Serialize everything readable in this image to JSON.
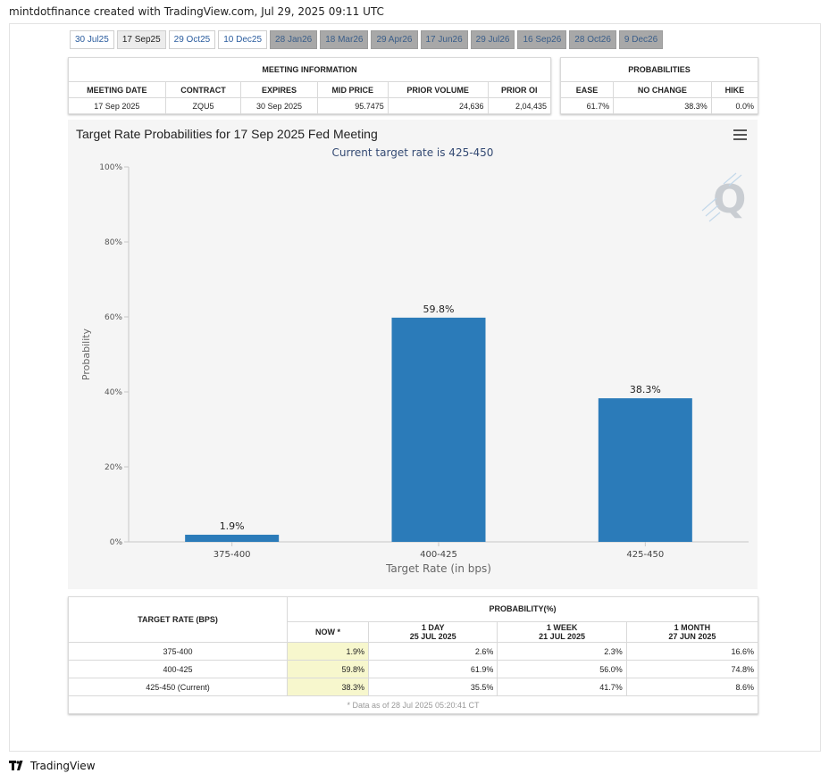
{
  "header": {
    "caption": "mintdotfinance created with TradingView.com, Jul 29, 2025 09:11 UTC"
  },
  "tabs": [
    {
      "label": "30 Jul25",
      "state": "normal"
    },
    {
      "label": "17 Sep25",
      "state": "selected"
    },
    {
      "label": "29 Oct25",
      "state": "normal"
    },
    {
      "label": "10 Dec25",
      "state": "normal"
    },
    {
      "label": "28 Jan26",
      "state": "future"
    },
    {
      "label": "18 Mar26",
      "state": "future"
    },
    {
      "label": "29 Apr26",
      "state": "future"
    },
    {
      "label": "17 Jun26",
      "state": "future"
    },
    {
      "label": "29 Jul26",
      "state": "future"
    },
    {
      "label": "16 Sep26",
      "state": "future"
    },
    {
      "label": "28 Oct26",
      "state": "future"
    },
    {
      "label": "9 Dec26",
      "state": "future"
    }
  ],
  "meeting_info": {
    "title": "MEETING INFORMATION",
    "columns": [
      "MEETING DATE",
      "CONTRACT",
      "EXPIRES",
      "MID PRICE",
      "PRIOR VOLUME",
      "PRIOR OI"
    ],
    "row": [
      "17 Sep 2025",
      "ZQU5",
      "30 Sep 2025",
      "95.7475",
      "24,636",
      "2,04,435"
    ]
  },
  "probabilities": {
    "title": "PROBABILITIES",
    "columns": [
      "EASE",
      "NO CHANGE",
      "HIKE"
    ],
    "row": [
      "61.7%",
      "38.3%",
      "0.0%"
    ]
  },
  "chart_data": {
    "type": "bar",
    "title": "Target Rate Probabilities for 17 Sep 2025 Fed Meeting",
    "subtitle": "Current target rate is 425-450",
    "xlabel": "Target Rate (in bps)",
    "ylabel": "Probability",
    "categories": [
      "375-400",
      "400-425",
      "425-450"
    ],
    "values": [
      1.9,
      59.8,
      38.3
    ],
    "value_labels": [
      "1.9%",
      "59.8%",
      "38.3%"
    ],
    "ylim": [
      0,
      100
    ],
    "yticks": [
      "0%",
      "20%",
      "40%",
      "60%",
      "80%",
      "100%"
    ],
    "bar_color": "#2b7bb9",
    "grid": false,
    "legend": "none"
  },
  "rate_table": {
    "header_left": "TARGET RATE (BPS)",
    "header_group": "PROBABILITY(%)",
    "columns": [
      {
        "line1": "NOW *",
        "line2": ""
      },
      {
        "line1": "1 DAY",
        "line2": "25 JUL 2025"
      },
      {
        "line1": "1 WEEK",
        "line2": "21 JUL 2025"
      },
      {
        "line1": "1 MONTH",
        "line2": "27 JUN 2025"
      }
    ],
    "rows": [
      {
        "rate": "375-400",
        "values": [
          "1.9%",
          "2.6%",
          "2.3%",
          "16.6%"
        ]
      },
      {
        "rate": "400-425",
        "values": [
          "59.8%",
          "61.9%",
          "56.0%",
          "74.8%"
        ]
      },
      {
        "rate": "425-450 (Current)",
        "values": [
          "38.3%",
          "35.5%",
          "41.7%",
          "8.6%"
        ]
      }
    ],
    "footnote": "* Data as of 28 Jul 2025 05:20:41 CT"
  },
  "footer": {
    "brand": "TradingView"
  },
  "colors": {
    "accent": "#2b7bb9",
    "now_highlight": "#f7f7cd",
    "subtitle": "#344a73"
  }
}
